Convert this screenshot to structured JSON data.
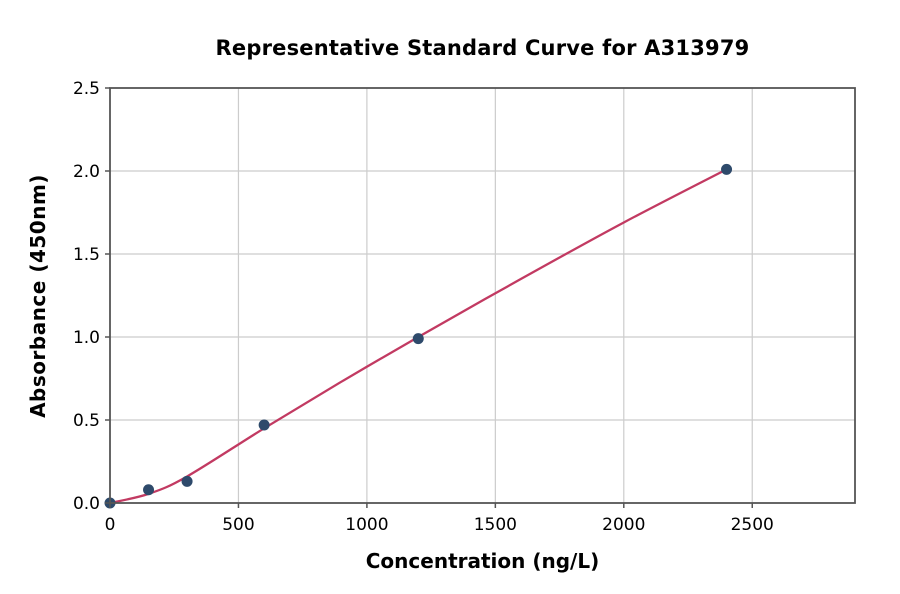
{
  "title": "Representative Standard Curve for A313979",
  "colors": {
    "background": "#ffffff",
    "point": "#2e4a6b",
    "fit_line": "#c23a62",
    "grid": "#cccccc",
    "spine": "#555555",
    "tick": "#555555",
    "text": "#000000"
  },
  "chart_data": {
    "type": "scatter",
    "title": "Representative Standard Curve for A313979",
    "xlabel": "Concentration (ng/L)",
    "ylabel": "Absorbance (450nm)",
    "xlim": [
      0,
      2900
    ],
    "ylim": [
      0,
      2.5
    ],
    "grid": true,
    "legend": "none",
    "x_tick_values": [
      0,
      500,
      1000,
      1500,
      2000,
      2500
    ],
    "x_tick_labels": [
      "0",
      "500",
      "1000",
      "1500",
      "2000",
      "2500"
    ],
    "y_tick_values": [
      0.0,
      0.5,
      1.0,
      1.5,
      2.0,
      2.5
    ],
    "y_tick_labels": [
      "0.0",
      "0.5",
      "1.0",
      "1.5",
      "2.0",
      "2.5"
    ],
    "series": [
      {
        "name": "standard-points",
        "type": "scatter",
        "x": [
          0,
          150,
          300,
          600,
          1200,
          2400
        ],
        "y": [
          0.0,
          0.08,
          0.13,
          0.47,
          0.99,
          2.01
        ]
      },
      {
        "name": "fit-curve",
        "type": "line",
        "x": [
          0,
          150,
          300,
          600,
          900,
          1200,
          1600,
          2000,
          2400
        ],
        "y": [
          0.0,
          0.055,
          0.16,
          0.45,
          0.73,
          1.0,
          1.35,
          1.69,
          2.01
        ]
      }
    ]
  }
}
